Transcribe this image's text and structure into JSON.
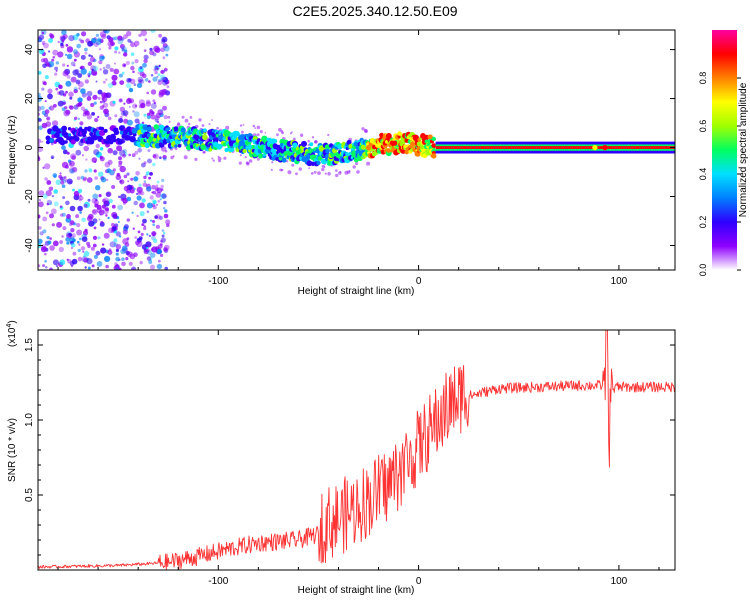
{
  "title": "C2E5.2025.340.12.50.E09",
  "chart_data": [
    {
      "type": "heatmap",
      "xlabel": "Height of straight line (km)",
      "ylabel": "Frequency (Hz)",
      "xlim": [
        -190,
        128
      ],
      "ylim": [
        -50,
        48
      ],
      "xticks": [
        -100,
        0,
        100
      ],
      "yticks": [
        -40,
        -20,
        0,
        20,
        40
      ],
      "colorbar": {
        "label": "Normalized spectral amplitude",
        "range": [
          0,
          1
        ],
        "ticks": [
          0.0,
          0.2,
          0.4,
          0.6,
          0.8
        ],
        "colors": [
          "#ffffff",
          "#8e00ff",
          "#2e00ff",
          "#0080ff",
          "#00e0ff",
          "#00ff60",
          "#a0ff00",
          "#ffff00",
          "#ff8000",
          "#ff0000",
          "#ff00a0"
        ]
      },
      "ridge": {
        "x": [
          -170,
          -150,
          -130,
          -110,
          -90,
          -80,
          -70,
          -60,
          -50,
          -40,
          -30,
          -20,
          -10,
          0,
          10,
          30,
          60,
          90,
          128
        ],
        "freq": [
          5,
          5,
          4.5,
          3.5,
          2,
          0,
          -1,
          -2,
          -3,
          -2.5,
          -1,
          1,
          2,
          1,
          0,
          0,
          0,
          0,
          0
        ]
      },
      "noise_region": [
        -190,
        -125
      ]
    },
    {
      "type": "line",
      "xlabel": "Height of straight line (km)",
      "ylabel": "SNR (10 * v/v)",
      "scale_label": "(x10",
      "scale_exp": "4",
      "xlim": [
        -190,
        128
      ],
      "ylim": [
        0,
        1.6
      ],
      "xticks": [
        -100,
        0,
        100
      ],
      "yticks": [
        0.5,
        1.0,
        1.5
      ],
      "color": "#ff3333",
      "trend": {
        "x": [
          -190,
          -150,
          -125,
          -110,
          -95,
          -80,
          -60,
          -45,
          -35,
          -25,
          -15,
          -5,
          5,
          15,
          25,
          40,
          60,
          80,
          90,
          100,
          128
        ],
        "y": [
          0.02,
          0.03,
          0.05,
          0.09,
          0.14,
          0.18,
          0.2,
          0.26,
          0.33,
          0.42,
          0.52,
          0.68,
          0.86,
          1.04,
          1.16,
          1.21,
          1.22,
          1.23,
          1.23,
          1.22,
          1.22
        ]
      },
      "spike": {
        "x": 95,
        "ymax": 1.58,
        "ymin": 0.72
      }
    }
  ]
}
